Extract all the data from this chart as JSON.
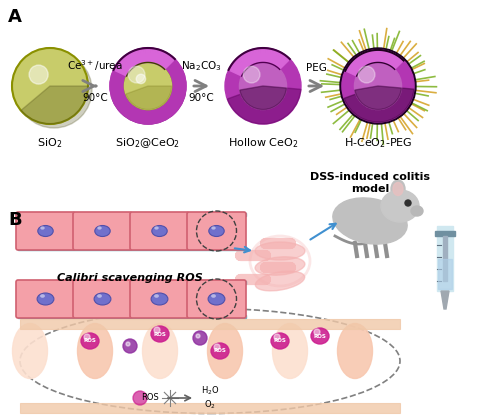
{
  "title_A": "A",
  "title_B": "B",
  "bg_color": "#ffffff",
  "label_sio2": "SiO$_2$",
  "label_sio2ceo2": "SiO$_2$@CeO$_2$",
  "label_hollow": "Hollow CeO$_2$",
  "label_hceo2peg": "H-CeO$_2$-PEG",
  "arrow1_top": "Ce$^{3+}$/urea",
  "arrow1_bot": "90°C",
  "arrow2_top": "Na$_2$CO$_3$",
  "arrow2_bot": "90°C",
  "arrow3_top": "PEG",
  "label_dss": "DSS-induced colitis\nmodel",
  "label_calibri": "Calibri scavenging ROS",
  "sio2_color": "#c8cc6a",
  "sio2_shadow": "#8a9000",
  "ceo2_outer": "#b336b3",
  "ceo2_inner": "#d966d9",
  "ceo2_shadow": "#800080",
  "hollow_inner": "#c060c0",
  "peg_color": "#90c030",
  "cell_fill": "#f4a0a8",
  "cell_border": "#d06070",
  "nucleus_color": "#7070cc",
  "tissue_color": "#f8d0c0",
  "ros_color": "#cc2090"
}
